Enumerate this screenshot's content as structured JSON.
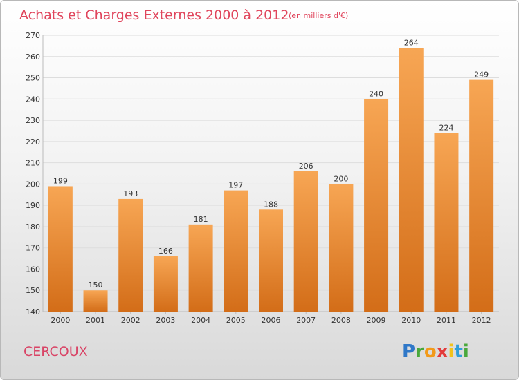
{
  "header": {
    "title": "Achats et Charges Externes 2000 à 2012",
    "unit": "(en milliers d'€)"
  },
  "commune": "CERCOUX",
  "brand": {
    "letters": [
      "P",
      "r",
      "o",
      "x",
      "i",
      "t",
      "i"
    ],
    "colors": [
      "#2f78c8",
      "#49a83b",
      "#f29a1a",
      "#e33b3b",
      "#f2c21a",
      "#2f9ed8",
      "#49a83b"
    ]
  },
  "chart_data": {
    "type": "bar",
    "title": "Achats et Charges Externes 2000 à 2012",
    "subtitle": "(en milliers d'€)",
    "categories": [
      "2000",
      "2001",
      "2002",
      "2003",
      "2004",
      "2005",
      "2006",
      "2007",
      "2008",
      "2009",
      "2010",
      "2011",
      "2012"
    ],
    "values": [
      199,
      150,
      193,
      166,
      181,
      197,
      188,
      206,
      200,
      240,
      264,
      224,
      249
    ],
    "ylim": [
      140,
      270
    ],
    "yticks": [
      140,
      150,
      160,
      170,
      180,
      190,
      200,
      210,
      220,
      230,
      240,
      250,
      260,
      270
    ],
    "grid": true,
    "bar_color_top": "#f7a654",
    "bar_color_bottom": "#d36d18"
  }
}
